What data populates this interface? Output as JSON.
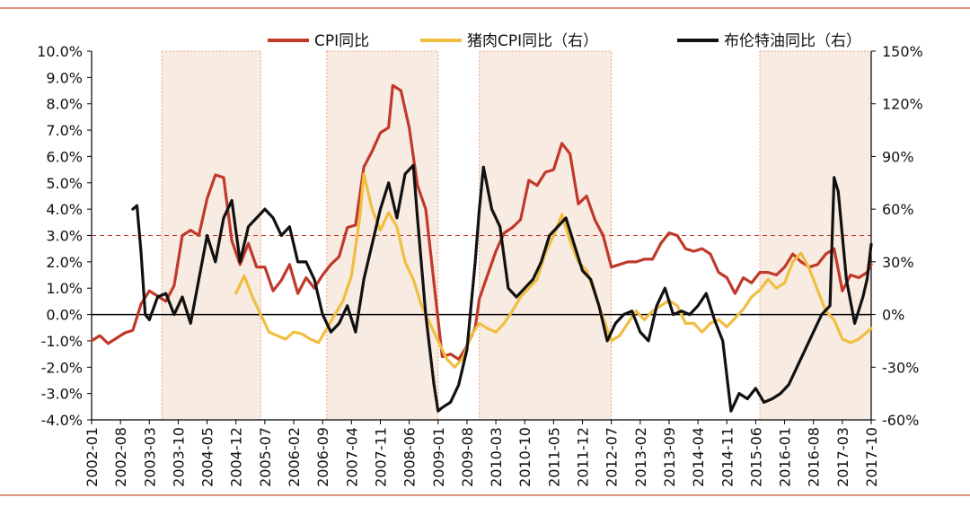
{
  "chart_data": {
    "type": "line",
    "title": "",
    "xlabel": "",
    "ylabel": "",
    "ylim": [
      -4.0,
      10.0
    ],
    "y2lim": [
      -60,
      150
    ],
    "y_ticks": [
      "10.0%",
      "9.0%",
      "8.0%",
      "7.0%",
      "6.0%",
      "5.0%",
      "4.0%",
      "3.0%",
      "2.0%",
      "1.0%",
      "0.0%",
      "-1.0%",
      "-2.0%",
      "-3.0%",
      "-4.0%"
    ],
    "y2_ticks": [
      "150%",
      "120%",
      "90%",
      "60%",
      "30%",
      "0%",
      "-30%",
      "-60%"
    ],
    "x_ticks": [
      "2002-01",
      "2002-08",
      "2003-03",
      "2003-10",
      "2004-05",
      "2004-12",
      "2005-07",
      "2006-02",
      "2006-09",
      "2007-04",
      "2007-11",
      "2008-06",
      "2009-01",
      "2009-08",
      "2010-03",
      "2010-10",
      "2011-05",
      "2011-12",
      "2012-07",
      "2013-02",
      "2013-09",
      "2014-04",
      "2014-11",
      "2015-06",
      "2016-01",
      "2016-08",
      "2017-03",
      "2017-10"
    ],
    "reference_line": 3.0,
    "shaded_periods": [
      [
        "2003-06",
        "2005-06"
      ],
      [
        "2006-10",
        "2009-01"
      ],
      [
        "2009-11",
        "2012-07"
      ],
      [
        "2015-07",
        "2017-10"
      ]
    ],
    "legend_position": "top",
    "series": [
      {
        "name": "CPI同比",
        "axis": "left",
        "color": "#c0392b",
        "points": [
          [
            "2002-01",
            -1.0
          ],
          [
            "2002-03",
            -0.8
          ],
          [
            "2002-05",
            -1.1
          ],
          [
            "2002-07",
            -0.9
          ],
          [
            "2002-09",
            -0.7
          ],
          [
            "2002-11",
            -0.6
          ],
          [
            "2003-01",
            0.4
          ],
          [
            "2003-03",
            0.9
          ],
          [
            "2003-05",
            0.7
          ],
          [
            "2003-07",
            0.5
          ],
          [
            "2003-09",
            1.1
          ],
          [
            "2003-11",
            3.0
          ],
          [
            "2004-01",
            3.2
          ],
          [
            "2004-03",
            3.0
          ],
          [
            "2004-05",
            4.4
          ],
          [
            "2004-07",
            5.3
          ],
          [
            "2004-09",
            5.2
          ],
          [
            "2004-11",
            2.8
          ],
          [
            "2005-01",
            1.9
          ],
          [
            "2005-03",
            2.7
          ],
          [
            "2005-05",
            1.8
          ],
          [
            "2005-07",
            1.8
          ],
          [
            "2005-09",
            0.9
          ],
          [
            "2005-11",
            1.3
          ],
          [
            "2006-01",
            1.9
          ],
          [
            "2006-03",
            0.8
          ],
          [
            "2006-05",
            1.4
          ],
          [
            "2006-07",
            1.0
          ],
          [
            "2006-09",
            1.5
          ],
          [
            "2006-11",
            1.9
          ],
          [
            "2007-01",
            2.2
          ],
          [
            "2007-03",
            3.3
          ],
          [
            "2007-05",
            3.4
          ],
          [
            "2007-07",
            5.6
          ],
          [
            "2007-09",
            6.2
          ],
          [
            "2007-11",
            6.9
          ],
          [
            "2008-01",
            7.1
          ],
          [
            "2008-02",
            8.7
          ],
          [
            "2008-04",
            8.5
          ],
          [
            "2008-06",
            7.1
          ],
          [
            "2008-08",
            4.9
          ],
          [
            "2008-10",
            4.0
          ],
          [
            "2008-12",
            1.2
          ],
          [
            "2009-02",
            -1.6
          ],
          [
            "2009-04",
            -1.5
          ],
          [
            "2009-06",
            -1.7
          ],
          [
            "2009-08",
            -1.2
          ],
          [
            "2009-10",
            -0.5
          ],
          [
            "2009-11",
            0.6
          ],
          [
            "2010-01",
            1.5
          ],
          [
            "2010-03",
            2.4
          ],
          [
            "2010-05",
            3.1
          ],
          [
            "2010-07",
            3.3
          ],
          [
            "2010-09",
            3.6
          ],
          [
            "2010-11",
            5.1
          ],
          [
            "2011-01",
            4.9
          ],
          [
            "2011-03",
            5.4
          ],
          [
            "2011-05",
            5.5
          ],
          [
            "2011-07",
            6.5
          ],
          [
            "2011-09",
            6.1
          ],
          [
            "2011-11",
            4.2
          ],
          [
            "2012-01",
            4.5
          ],
          [
            "2012-03",
            3.6
          ],
          [
            "2012-05",
            3.0
          ],
          [
            "2012-07",
            1.8
          ],
          [
            "2012-09",
            1.9
          ],
          [
            "2012-11",
            2.0
          ],
          [
            "2013-01",
            2.0
          ],
          [
            "2013-03",
            2.1
          ],
          [
            "2013-05",
            2.1
          ],
          [
            "2013-07",
            2.7
          ],
          [
            "2013-09",
            3.1
          ],
          [
            "2013-11",
            3.0
          ],
          [
            "2014-01",
            2.5
          ],
          [
            "2014-03",
            2.4
          ],
          [
            "2014-05",
            2.5
          ],
          [
            "2014-07",
            2.3
          ],
          [
            "2014-09",
            1.6
          ],
          [
            "2014-11",
            1.4
          ],
          [
            "2015-01",
            0.8
          ],
          [
            "2015-03",
            1.4
          ],
          [
            "2015-05",
            1.2
          ],
          [
            "2015-07",
            1.6
          ],
          [
            "2015-09",
            1.6
          ],
          [
            "2015-11",
            1.5
          ],
          [
            "2016-01",
            1.8
          ],
          [
            "2016-03",
            2.3
          ],
          [
            "2016-05",
            2.0
          ],
          [
            "2016-07",
            1.8
          ],
          [
            "2016-09",
            1.9
          ],
          [
            "2016-11",
            2.3
          ],
          [
            "2017-01",
            2.5
          ],
          [
            "2017-03",
            0.9
          ],
          [
            "2017-05",
            1.5
          ],
          [
            "2017-07",
            1.4
          ],
          [
            "2017-09",
            1.6
          ],
          [
            "2017-10",
            1.9
          ]
        ]
      },
      {
        "name": "猪肉CPI同比（右）",
        "axis": "right",
        "color": "#f0be41",
        "points": [
          [
            "2004-12",
            12
          ],
          [
            "2005-02",
            22
          ],
          [
            "2005-04",
            10
          ],
          [
            "2005-06",
            0
          ],
          [
            "2005-08",
            -10
          ],
          [
            "2005-10",
            -12
          ],
          [
            "2005-12",
            -14
          ],
          [
            "2006-02",
            -10
          ],
          [
            "2006-04",
            -11
          ],
          [
            "2006-06",
            -14
          ],
          [
            "2006-08",
            -16
          ],
          [
            "2006-10",
            -8
          ],
          [
            "2006-12",
            0
          ],
          [
            "2007-02",
            8
          ],
          [
            "2007-04",
            22
          ],
          [
            "2007-06",
            55
          ],
          [
            "2007-07",
            80
          ],
          [
            "2007-09",
            60
          ],
          [
            "2007-11",
            48
          ],
          [
            "2008-01",
            58
          ],
          [
            "2008-03",
            50
          ],
          [
            "2008-05",
            30
          ],
          [
            "2008-07",
            20
          ],
          [
            "2008-09",
            5
          ],
          [
            "2008-11",
            -5
          ],
          [
            "2009-01",
            -15
          ],
          [
            "2009-03",
            -25
          ],
          [
            "2009-05",
            -30
          ],
          [
            "2009-07",
            -25
          ],
          [
            "2009-09",
            -12
          ],
          [
            "2009-11",
            -5
          ],
          [
            "2010-01",
            -8
          ],
          [
            "2010-03",
            -10
          ],
          [
            "2010-05",
            -5
          ],
          [
            "2010-07",
            2
          ],
          [
            "2010-09",
            10
          ],
          [
            "2010-11",
            15
          ],
          [
            "2011-01",
            20
          ],
          [
            "2011-03",
            35
          ],
          [
            "2011-05",
            45
          ],
          [
            "2011-07",
            57
          ],
          [
            "2011-09",
            42
          ],
          [
            "2011-11",
            30
          ],
          [
            "2012-01",
            25
          ],
          [
            "2012-03",
            12
          ],
          [
            "2012-05",
            -2
          ],
          [
            "2012-07",
            -15
          ],
          [
            "2012-09",
            -12
          ],
          [
            "2012-11",
            -5
          ],
          [
            "2013-01",
            2
          ],
          [
            "2013-03",
            -3
          ],
          [
            "2013-05",
            2
          ],
          [
            "2013-07",
            5
          ],
          [
            "2013-09",
            8
          ],
          [
            "2013-11",
            5
          ],
          [
            "2014-01",
            -5
          ],
          [
            "2014-03",
            -5
          ],
          [
            "2014-05",
            -10
          ],
          [
            "2014-07",
            -5
          ],
          [
            "2014-09",
            -3
          ],
          [
            "2014-11",
            -7
          ],
          [
            "2015-01",
            -2
          ],
          [
            "2015-03",
            3
          ],
          [
            "2015-05",
            10
          ],
          [
            "2015-07",
            14
          ],
          [
            "2015-09",
            20
          ],
          [
            "2015-11",
            15
          ],
          [
            "2016-01",
            18
          ],
          [
            "2016-03",
            30
          ],
          [
            "2016-05",
            35
          ],
          [
            "2016-07",
            26
          ],
          [
            "2016-09",
            14
          ],
          [
            "2016-11",
            2
          ],
          [
            "2017-01",
            -3
          ],
          [
            "2017-03",
            -14
          ],
          [
            "2017-05",
            -16
          ],
          [
            "2017-07",
            -14
          ],
          [
            "2017-09",
            -10
          ],
          [
            "2017-10",
            -8
          ]
        ]
      },
      {
        "name": "布伦特油同比（右）",
        "axis": "right",
        "color": "#111111",
        "points": [
          [
            "2002-11",
            60
          ],
          [
            "2002-12",
            62
          ],
          [
            "2003-01",
            35
          ],
          [
            "2003-02",
            0
          ],
          [
            "2003-03",
            -3
          ],
          [
            "2003-05",
            10
          ],
          [
            "2003-07",
            12
          ],
          [
            "2003-09",
            0
          ],
          [
            "2003-11",
            10
          ],
          [
            "2004-01",
            -5
          ],
          [
            "2004-03",
            20
          ],
          [
            "2004-05",
            45
          ],
          [
            "2004-07",
            30
          ],
          [
            "2004-09",
            55
          ],
          [
            "2004-11",
            65
          ],
          [
            "2005-01",
            30
          ],
          [
            "2005-03",
            50
          ],
          [
            "2005-05",
            55
          ],
          [
            "2005-07",
            60
          ],
          [
            "2005-09",
            55
          ],
          [
            "2005-11",
            45
          ],
          [
            "2006-01",
            50
          ],
          [
            "2006-03",
            30
          ],
          [
            "2006-05",
            30
          ],
          [
            "2006-07",
            20
          ],
          [
            "2006-09",
            0
          ],
          [
            "2006-11",
            -10
          ],
          [
            "2007-01",
            -5
          ],
          [
            "2007-03",
            5
          ],
          [
            "2007-05",
            -10
          ],
          [
            "2007-07",
            20
          ],
          [
            "2007-09",
            40
          ],
          [
            "2007-11",
            60
          ],
          [
            "2008-01",
            75
          ],
          [
            "2008-03",
            55
          ],
          [
            "2008-05",
            80
          ],
          [
            "2008-07",
            85
          ],
          [
            "2008-08",
            55
          ],
          [
            "2008-10",
            0
          ],
          [
            "2008-12",
            -40
          ],
          [
            "2009-01",
            -55
          ],
          [
            "2009-02",
            -53
          ],
          [
            "2009-04",
            -50
          ],
          [
            "2009-06",
            -40
          ],
          [
            "2009-08",
            -20
          ],
          [
            "2009-10",
            30
          ],
          [
            "2009-11",
            60
          ],
          [
            "2009-12",
            84
          ],
          [
            "2010-02",
            60
          ],
          [
            "2010-04",
            50
          ],
          [
            "2010-06",
            15
          ],
          [
            "2010-08",
            10
          ],
          [
            "2010-10",
            15
          ],
          [
            "2010-12",
            20
          ],
          [
            "2011-02",
            30
          ],
          [
            "2011-04",
            45
          ],
          [
            "2011-06",
            50
          ],
          [
            "2011-08",
            55
          ],
          [
            "2011-10",
            40
          ],
          [
            "2011-12",
            25
          ],
          [
            "2012-02",
            20
          ],
          [
            "2012-04",
            5
          ],
          [
            "2012-06",
            -15
          ],
          [
            "2012-08",
            -5
          ],
          [
            "2012-10",
            0
          ],
          [
            "2012-12",
            2
          ],
          [
            "2013-02",
            -10
          ],
          [
            "2013-04",
            -15
          ],
          [
            "2013-06",
            5
          ],
          [
            "2013-08",
            15
          ],
          [
            "2013-10",
            0
          ],
          [
            "2013-12",
            2
          ],
          [
            "2014-02",
            0
          ],
          [
            "2014-04",
            5
          ],
          [
            "2014-06",
            12
          ],
          [
            "2014-08",
            -3
          ],
          [
            "2014-10",
            -15
          ],
          [
            "2014-12",
            -55
          ],
          [
            "2015-02",
            -45
          ],
          [
            "2015-04",
            -48
          ],
          [
            "2015-06",
            -42
          ],
          [
            "2015-08",
            -50
          ],
          [
            "2015-10",
            -48
          ],
          [
            "2015-12",
            -45
          ],
          [
            "2016-02",
            -40
          ],
          [
            "2016-04",
            -30
          ],
          [
            "2016-06",
            -20
          ],
          [
            "2016-08",
            -10
          ],
          [
            "2016-10",
            0
          ],
          [
            "2016-12",
            5
          ],
          [
            "2017-01",
            78
          ],
          [
            "2017-02",
            70
          ],
          [
            "2017-04",
            20
          ],
          [
            "2017-06",
            -5
          ],
          [
            "2017-08",
            10
          ],
          [
            "2017-09",
            20
          ],
          [
            "2017-10",
            40
          ]
        ]
      }
    ]
  }
}
